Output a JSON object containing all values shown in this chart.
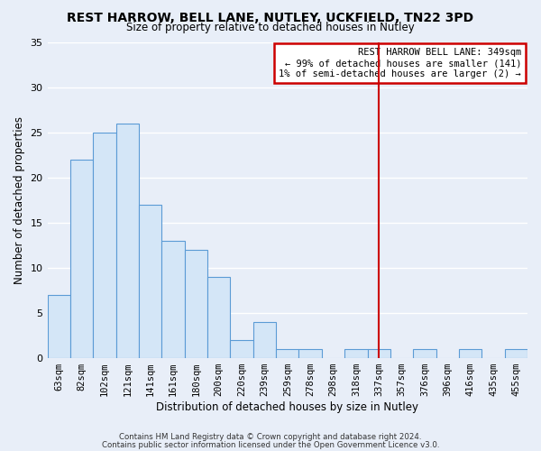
{
  "title": "REST HARROW, BELL LANE, NUTLEY, UCKFIELD, TN22 3PD",
  "subtitle": "Size of property relative to detached houses in Nutley",
  "xlabel": "Distribution of detached houses by size in Nutley",
  "ylabel": "Number of detached properties",
  "categories": [
    "63sqm",
    "82sqm",
    "102sqm",
    "121sqm",
    "141sqm",
    "161sqm",
    "180sqm",
    "200sqm",
    "220sqm",
    "239sqm",
    "259sqm",
    "278sqm",
    "298sqm",
    "318sqm",
    "337sqm",
    "357sqm",
    "376sqm",
    "396sqm",
    "416sqm",
    "435sqm",
    "455sqm"
  ],
  "values": [
    7,
    22,
    25,
    26,
    17,
    13,
    12,
    9,
    2,
    4,
    1,
    1,
    0,
    1,
    1,
    0,
    1,
    0,
    1,
    0,
    1
  ],
  "bar_color": "#d4e6f7",
  "bar_edge_color": "#5b9bd5",
  "background_color": "#e8eef8",
  "plot_bg_color": "#e8eef8",
  "grid_color": "#ffffff",
  "ylim": [
    0,
    35
  ],
  "yticks": [
    0,
    5,
    10,
    15,
    20,
    25,
    30,
    35
  ],
  "vline_x_index": 14,
  "vline_color": "#cc0000",
  "annotation_title": "REST HARROW BELL LANE: 349sqm",
  "annotation_line1": "← 99% of detached houses are smaller (141)",
  "annotation_line2": "1% of semi-detached houses are larger (2) →",
  "annotation_box_color": "#cc0000",
  "footer_line1": "Contains HM Land Registry data © Crown copyright and database right 2024.",
  "footer_line2": "Contains public sector information licensed under the Open Government Licence v3.0."
}
